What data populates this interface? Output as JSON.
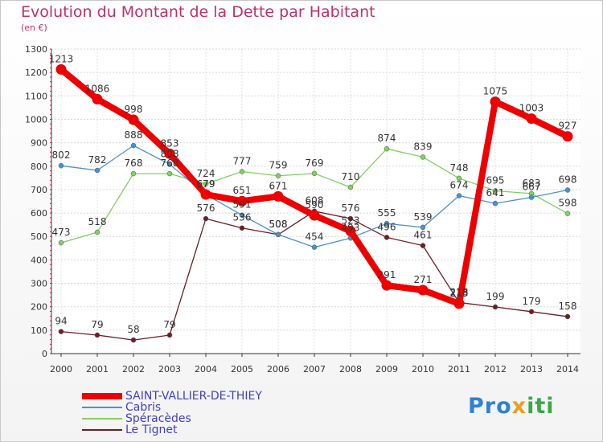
{
  "chart_data": {
    "type": "line",
    "title": "Evolution du Montant de la Dette par Habitant",
    "subtitle": "(en €)",
    "x": [
      "2000",
      "2001",
      "2002",
      "2003",
      "2004",
      "2005",
      "2006",
      "2007",
      "2008",
      "2009",
      "2010",
      "2011",
      "2012",
      "2013",
      "2014"
    ],
    "yticks": [
      0,
      100,
      200,
      300,
      400,
      500,
      600,
      700,
      800,
      900,
      1000,
      1100,
      1200,
      1300
    ],
    "ylim": [
      0,
      1300
    ],
    "grid": true,
    "legend_position": "bottom-left",
    "series": [
      {
        "name": "SAINT-VALLIER-DE-THIEY",
        "color": "#ee0000",
        "values": [
          1213,
          1086,
          998,
          853,
          679,
          651,
          671,
          590,
          523,
          291,
          271,
          213,
          1075,
          1003,
          927
        ]
      },
      {
        "name": "Cabris",
        "color": "#4a90d0",
        "values": [
          802,
          782,
          888,
          808,
          679,
          591,
          508,
          454,
          493,
          555,
          539,
          674,
          641,
          667,
          698
        ]
      },
      {
        "name": "Spéracèdes",
        "color": "#80d060",
        "values": [
          473,
          518,
          768,
          768,
          724,
          777,
          759,
          769,
          710,
          874,
          839,
          748,
          695,
          683,
          598
        ]
      },
      {
        "name": "Le Tignet",
        "color": "#6b1f22",
        "values": [
          94,
          79,
          58,
          79,
          576,
          536,
          508,
          608,
          576,
          496,
          461,
          218,
          199,
          179,
          158
        ]
      }
    ]
  },
  "logo": {
    "p1": "Pro",
    "p2": "x",
    "p3": "iti"
  }
}
